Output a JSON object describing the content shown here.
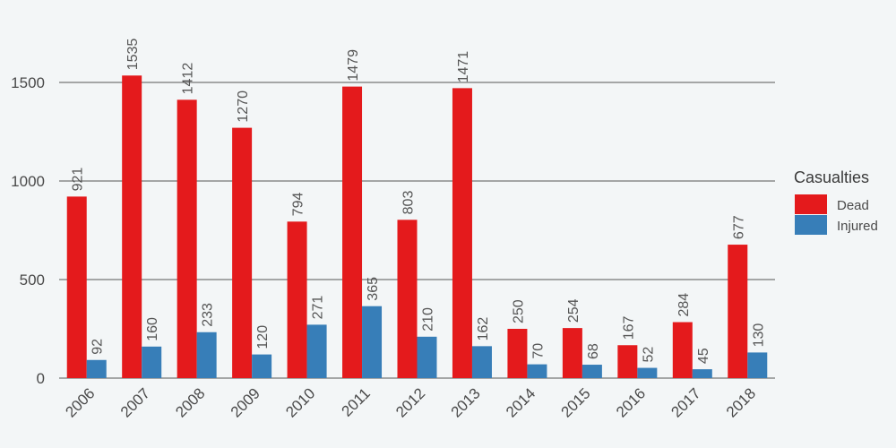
{
  "chart_data": {
    "type": "bar",
    "categories": [
      "2006",
      "2007",
      "2008",
      "2009",
      "2010",
      "2011",
      "2012",
      "2013",
      "2014",
      "2015",
      "2016",
      "2017",
      "2018"
    ],
    "series": [
      {
        "name": "Dead",
        "color": "#e41a1c",
        "values": [
          921,
          1535,
          1412,
          1270,
          794,
          1479,
          803,
          1471,
          250,
          254,
          167,
          284,
          677
        ]
      },
      {
        "name": "Injured",
        "color": "#377eb8",
        "values": [
          92,
          160,
          233,
          120,
          271,
          365,
          210,
          162,
          70,
          68,
          52,
          45,
          130
        ]
      }
    ],
    "yticks": [
      "0",
      "500",
      "1000",
      "1500"
    ],
    "ylim": [
      0,
      1650
    ],
    "legend": {
      "title": "Casualties",
      "placement": "right"
    },
    "grid": true,
    "colors": {
      "background": "#f3f6f7",
      "gridline": "#555555"
    }
  }
}
